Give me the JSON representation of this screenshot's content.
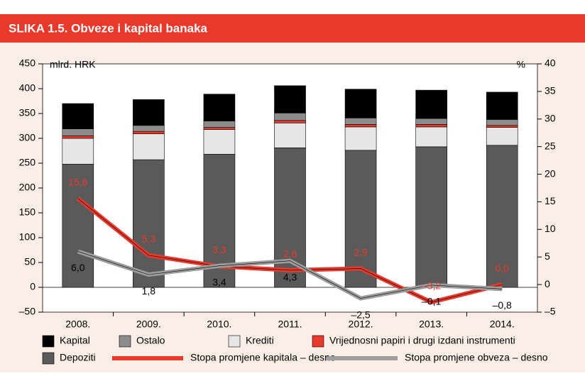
{
  "chart_data": {
    "type": "bar",
    "title": "SLIKA 1.5. Obveze i kapital banaka",
    "y_label": "mlrd. HRK",
    "y2_label": "%",
    "categories": [
      "2008.",
      "2009.",
      "2010.",
      "2011.",
      "2012.",
      "2013.",
      "2014."
    ],
    "ylim": [
      -50,
      450
    ],
    "yticks": [
      {
        "value": -50,
        "label": "–50"
      },
      0,
      50,
      100,
      150,
      200,
      250,
      300,
      350,
      400,
      450
    ],
    "y2lim": [
      -5,
      40
    ],
    "y2ticks": [
      {
        "value": -5,
        "label": "–5"
      },
      0,
      5,
      10,
      15,
      20,
      25,
      30,
      35,
      40
    ],
    "series": [
      {
        "name": "Depoziti",
        "color": "#5a5a5a",
        "values": [
          248,
          257,
          268,
          281,
          276,
          283,
          286
        ]
      },
      {
        "name": "Krediti",
        "color": "#e6e6e6",
        "values": [
          52,
          52,
          50,
          50,
          47,
          40,
          36
        ]
      },
      {
        "name": "Vrijednosni papiri i drugi izdani instrumenti",
        "color": "#e8392b",
        "values": [
          5,
          5,
          4,
          5,
          5,
          5,
          4
        ]
      },
      {
        "name": "Ostalo",
        "color": "#8c8c8c",
        "values": [
          14,
          12,
          13,
          15,
          13,
          12,
          12
        ]
      },
      {
        "name": "Kapital",
        "color": "#000000",
        "values": [
          51,
          52,
          54,
          55,
          58,
          57,
          55
        ]
      },
      {
        "name": "Stopa promjene kapitala – desno",
        "type": "line",
        "axis": "y2",
        "color": "#e8392b",
        "values": [
          15.6,
          5.3,
          3.3,
          2.6,
          2.9,
          -3.2,
          0.0
        ],
        "value_labels": [
          "15,6",
          "5,3",
          "3,3",
          "2,6",
          "2,9",
          "–3,2",
          "0,0"
        ]
      },
      {
        "name": "Stopa promjene obveza – desno",
        "type": "line",
        "axis": "y2",
        "color": "#9d9d9d",
        "values": [
          6.0,
          1.8,
          3.4,
          4.3,
          -2.5,
          -0.1,
          -0.8
        ],
        "value_labels": [
          "6,0",
          "1,8",
          "3,4",
          "4,3",
          "–2,5",
          "–0,1",
          "–0,8"
        ]
      }
    ]
  }
}
